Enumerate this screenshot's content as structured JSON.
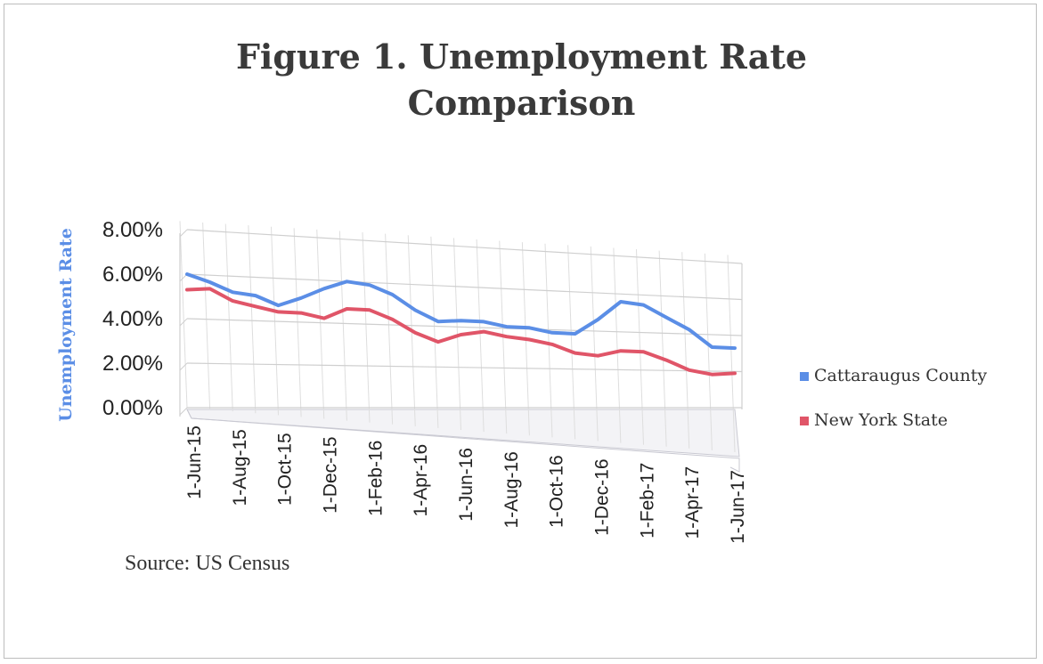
{
  "chart_data": {
    "type": "line",
    "title": [
      "Figure 1. Unemployment Rate",
      "Comparison"
    ],
    "ylabel": "Unemployment Rate",
    "yticks": [
      "0.00%",
      "2.00%",
      "4.00%",
      "6.00%",
      "8.00%"
    ],
    "ylim": [
      0,
      8
    ],
    "xtick_labels": [
      "1-Jun-15",
      "1-Aug-15",
      "1-Oct-15",
      "1-Dec-15",
      "1-Feb-16",
      "1-Apr-16",
      "1-Jun-16",
      "1-Aug-16",
      "1-Oct-16",
      "1-Dec-16",
      "1-Feb-17",
      "1-Apr-17",
      "1-Jun-17"
    ],
    "x": [
      "1-Jun-15",
      "1-Jul-15",
      "1-Aug-15",
      "1-Sep-15",
      "1-Oct-15",
      "1-Nov-15",
      "1-Dec-15",
      "1-Jan-16",
      "1-Feb-16",
      "1-Mar-16",
      "1-Apr-16",
      "1-May-16",
      "1-Jun-16",
      "1-Jul-16",
      "1-Aug-16",
      "1-Sep-16",
      "1-Oct-16",
      "1-Nov-16",
      "1-Dec-16",
      "1-Jan-17",
      "1-Feb-17",
      "1-Mar-17",
      "1-Apr-17",
      "1-May-17",
      "1-Jun-17"
    ],
    "series": [
      {
        "name": "Cattaraugus County",
        "color": "#5b8ee6",
        "values": [
          6.0,
          5.7,
          5.3,
          5.2,
          4.8,
          5.2,
          5.7,
          6.1,
          6.0,
          5.6,
          4.9,
          4.4,
          4.5,
          4.5,
          4.3,
          4.3,
          4.1,
          4.1,
          4.9,
          5.9,
          5.8,
          5.2,
          4.6,
          3.7,
          3.7
        ]
      },
      {
        "name": "New York State",
        "color": "#e05568",
        "values": [
          5.3,
          5.4,
          4.9,
          4.7,
          4.5,
          4.5,
          4.3,
          4.8,
          4.8,
          4.4,
          3.8,
          3.4,
          3.8,
          4.0,
          3.8,
          3.7,
          3.5,
          3.1,
          3.0,
          3.3,
          3.3,
          2.9,
          2.4,
          2.2,
          2.3
        ]
      }
    ],
    "grid": true,
    "legend": "right",
    "source": "Source: US Census"
  }
}
